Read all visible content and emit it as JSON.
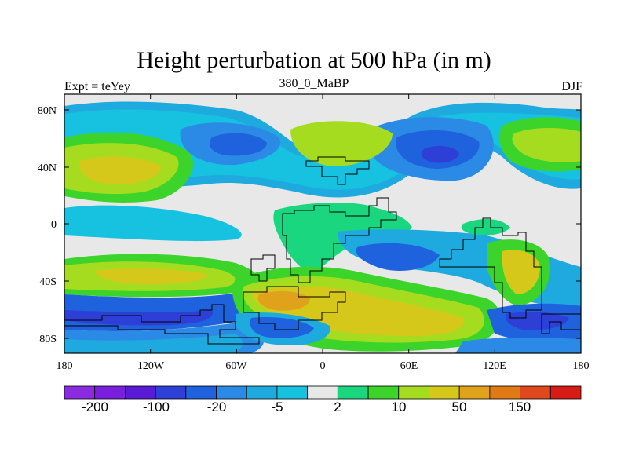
{
  "title": "Height perturbation at 500 hPa (in m)",
  "subtitle_left": "Expt = teYey",
  "subtitle_center": "380_0_MaBP",
  "subtitle_right": "DJF",
  "y_ticks": [
    "80N",
    "40N",
    "0",
    "40S",
    "80S"
  ],
  "x_ticks": [
    "180",
    "120W",
    "60W",
    "0",
    "60E",
    "120E",
    "180"
  ],
  "colorbar": {
    "colors": [
      "#8a2be2",
      "#7a1fe0",
      "#5a1bd8",
      "#2d3fd6",
      "#1f62dd",
      "#2a8ae6",
      "#1eaadf",
      "#16c2e0",
      "#e8e8e8",
      "#1ad67e",
      "#3cd42a",
      "#a6dc1f",
      "#d6c81a",
      "#e0a21a",
      "#e07a14",
      "#e0481e",
      "#d61c14"
    ],
    "labels": [
      "-200",
      "-100",
      "-20",
      "-5",
      "2",
      "10",
      "50",
      "150"
    ]
  },
  "chart_data": {
    "type": "heatmap",
    "title": "Height perturbation at 500 hPa (in m)",
    "x_range": [
      "180W",
      "180E"
    ],
    "y_range": [
      "90S",
      "90N"
    ],
    "contour_levels": [
      -200,
      -150,
      -100,
      -50,
      -20,
      -10,
      -5,
      -2,
      2,
      5,
      10,
      20,
      50,
      100,
      150,
      200
    ]
  }
}
